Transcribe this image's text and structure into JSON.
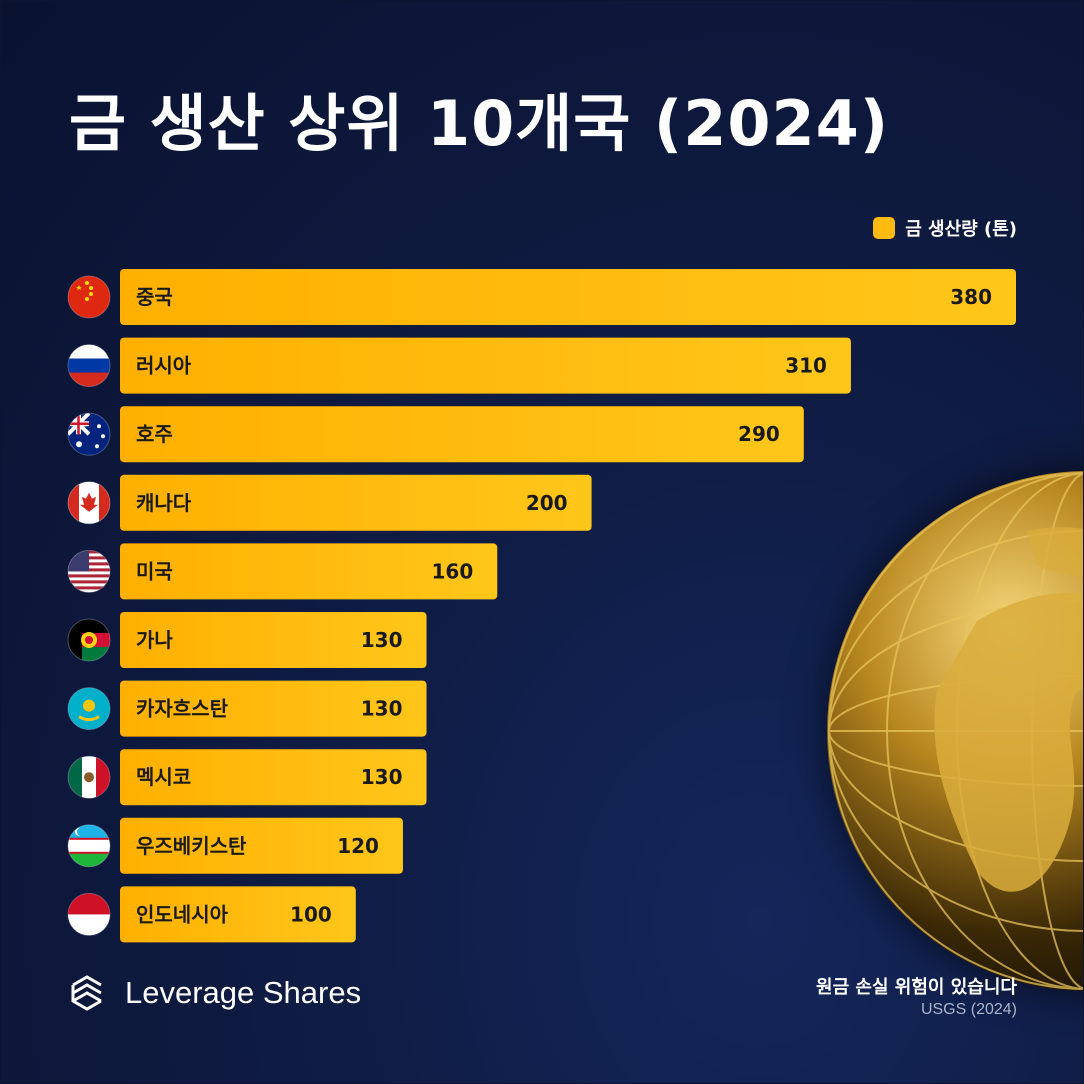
{
  "title": "금 생산 상위 10개국 (2024)",
  "legend": "금 생산량 (톤)",
  "brand": "Leverage Shares",
  "disclaimer": "원금 손실 위험이 있습니다",
  "source": "USGS (2024)",
  "colors": {
    "bar": "#ffba0f",
    "background": "#0f1c44",
    "text": "#ffffff"
  },
  "chart_data": {
    "type": "bar",
    "orientation": "horizontal",
    "categories": [
      "중국",
      "러시아",
      "호주",
      "캐나다",
      "미국",
      "가나",
      "카자흐스탄",
      "멕시코",
      "우즈베키스탄",
      "인도네시아"
    ],
    "flags": [
      "china-flag-icon",
      "russia-flag-icon",
      "australia-flag-icon",
      "canada-flag-icon",
      "usa-flag-icon",
      "ghana-flag-icon",
      "kazakhstan-flag-icon",
      "mexico-flag-icon",
      "uzbekistan-flag-icon",
      "indonesia-flag-icon"
    ],
    "series": [
      {
        "name": "금 생산량 (톤)",
        "values": [
          380,
          310,
          290,
          200,
          160,
          130,
          130,
          130,
          120,
          100
        ]
      }
    ],
    "legend": "top-right"
  }
}
